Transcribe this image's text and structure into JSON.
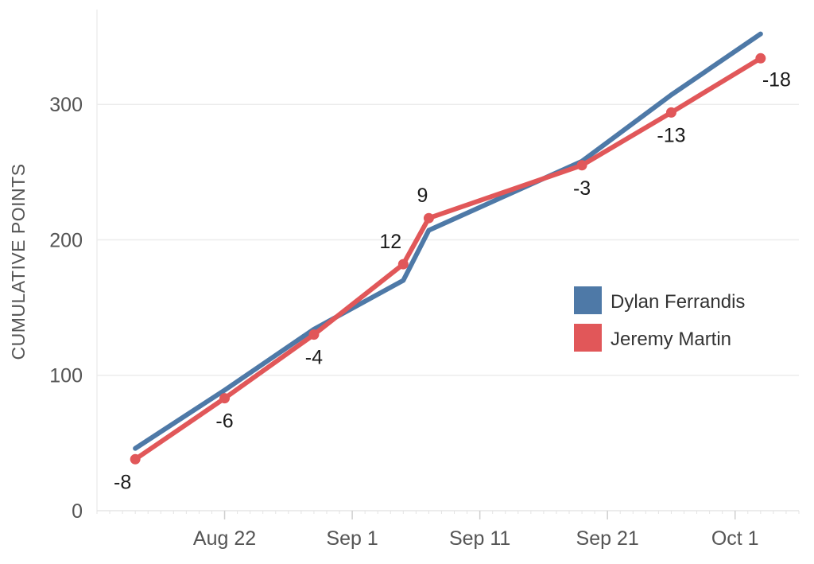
{
  "chart_data": {
    "type": "line",
    "ylabel": "CUMULATIVE POINTS",
    "xlabel": "",
    "ylim": [
      0,
      370
    ],
    "xlim": [
      "2024-08-12",
      "2024-10-06"
    ],
    "yticks": [
      0,
      100,
      200,
      300
    ],
    "xticks": [
      {
        "date": "2024-08-22",
        "label": "Aug 22"
      },
      {
        "date": "2024-09-01",
        "label": "Sep 1"
      },
      {
        "date": "2024-09-11",
        "label": "Sep 11"
      },
      {
        "date": "2024-09-21",
        "label": "Sep 21"
      },
      {
        "date": "2024-10-01",
        "label": "Oct 1"
      }
    ],
    "grid": "horizontal",
    "legend_position": "right-middle",
    "series": [
      {
        "name": "Dylan Ferrandis",
        "color": "#4e79a7",
        "markers": false,
        "points": [
          {
            "x": "2024-08-15",
            "y": 46
          },
          {
            "x": "2024-08-22",
            "y": 89
          },
          {
            "x": "2024-08-29",
            "y": 134
          },
          {
            "x": "2024-09-05",
            "y": 170
          },
          {
            "x": "2024-09-07",
            "y": 207
          },
          {
            "x": "2024-09-19",
            "y": 258
          },
          {
            "x": "2024-09-26",
            "y": 307
          },
          {
            "x": "2024-10-03",
            "y": 352
          }
        ]
      },
      {
        "name": "Jeremy Martin",
        "color": "#e15759",
        "markers": true,
        "points": [
          {
            "x": "2024-08-15",
            "y": 38,
            "label": "-8"
          },
          {
            "x": "2024-08-22",
            "y": 83,
            "label": "-6"
          },
          {
            "x": "2024-08-29",
            "y": 130,
            "label": "-4"
          },
          {
            "x": "2024-09-05",
            "y": 182,
            "label": "12"
          },
          {
            "x": "2024-09-07",
            "y": 216,
            "label": "9"
          },
          {
            "x": "2024-09-19",
            "y": 255,
            "label": "-3"
          },
          {
            "x": "2024-09-26",
            "y": 294,
            "label": "-13"
          },
          {
            "x": "2024-10-03",
            "y": 334,
            "label": "-18"
          }
        ]
      }
    ]
  }
}
